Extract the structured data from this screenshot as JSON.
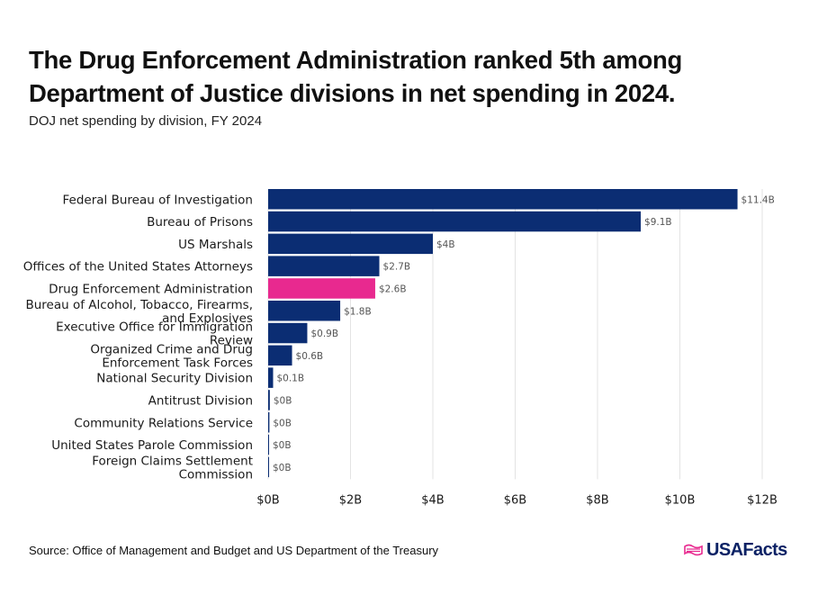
{
  "title": "The Drug Enforcement Administration ranked 5th among Department of Justice divisions in net spending in 2024.",
  "subtitle": "DOJ net spending by division, FY 2024",
  "source": "Source: Office of Management and Budget and US Department of the Treasury",
  "brand": {
    "name": "USAFacts",
    "icon": "usafacts-flag-icon"
  },
  "colors": {
    "default_bar": "#0b2d73",
    "highlight_bar": "#e8298f",
    "grid": "#e3e3e3"
  },
  "chart_data": {
    "type": "bar",
    "orientation": "horizontal",
    "categories": [
      "Federal Bureau of Investigation",
      "Bureau of Prisons",
      "US Marshals",
      "Offices of the United States Attorneys",
      "Drug Enforcement Administration",
      "Bureau of Alcohol, Tobacco, Firearms, and Explosives",
      "Executive Office for Immigration Review",
      "Organized Crime and Drug Enforcement Task Forces",
      "National Security Division",
      "Antitrust Division",
      "Community Relations Service",
      "United States Parole Commission",
      "Foreign Claims Settlement Commission"
    ],
    "category_lines": [
      [
        "Federal Bureau of Investigation"
      ],
      [
        "Bureau of Prisons"
      ],
      [
        "US Marshals"
      ],
      [
        "Offices of the United States Attorneys"
      ],
      [
        "Drug Enforcement Administration"
      ],
      [
        "Bureau of Alcohol, Tobacco, Firearms,",
        "and Explosives"
      ],
      [
        "Executive Office for Immigration",
        "Review"
      ],
      [
        "Organized Crime and Drug",
        "Enforcement Task Forces"
      ],
      [
        "National Security Division"
      ],
      [
        "Antitrust Division"
      ],
      [
        "Community Relations Service"
      ],
      [
        "United States Parole Commission"
      ],
      [
        "Foreign Claims Settlement",
        "Commission"
      ]
    ],
    "values": [
      11.4,
      9.05,
      4.0,
      2.7,
      2.6,
      1.75,
      0.95,
      0.58,
      0.12,
      0.04,
      0.03,
      0.01,
      0.01
    ],
    "value_labels": [
      "$11.4B",
      "$9.1B",
      "$4B",
      "$2.7B",
      "$2.6B",
      "$1.8B",
      "$0.9B",
      "$0.6B",
      "$0.1B",
      "$0B",
      "$0B",
      "$0B",
      "$0B"
    ],
    "highlight": "Drug Enforcement Administration",
    "xlim": [
      0,
      12
    ],
    "xticks": [
      0,
      2,
      4,
      6,
      8,
      10,
      12
    ],
    "xtick_labels": [
      "$0B",
      "$2B",
      "$4B",
      "$6B",
      "$8B",
      "$10B",
      "$12B"
    ],
    "units": "billions of dollars",
    "grid": true,
    "legend": false
  }
}
